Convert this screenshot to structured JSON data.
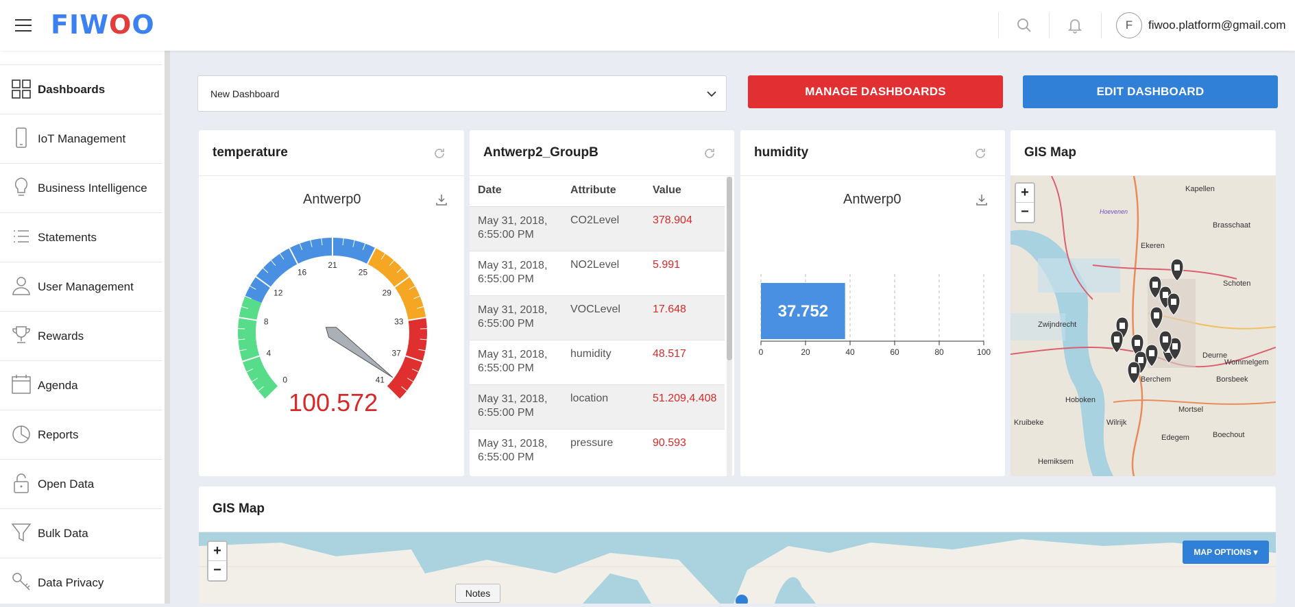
{
  "header": {
    "logo": "FIWOO",
    "avatar_letter": "F",
    "email": "fiwoo.platform@gmail.com"
  },
  "sidebar": {
    "items": [
      {
        "label": "Dashboards",
        "icon": "grid-icon",
        "active": true
      },
      {
        "label": "IoT Management",
        "icon": "phone-icon"
      },
      {
        "label": "Business Intelligence",
        "icon": "lightbulb-icon"
      },
      {
        "label": "Statements",
        "icon": "list-icon"
      },
      {
        "label": "User Management",
        "icon": "user-icon"
      },
      {
        "label": "Rewards",
        "icon": "trophy-icon"
      },
      {
        "label": "Agenda",
        "icon": "calendar-icon"
      },
      {
        "label": "Reports",
        "icon": "pie-chart-icon"
      },
      {
        "label": "Open Data",
        "icon": "unlock-icon"
      },
      {
        "label": "Bulk Data",
        "icon": "funnel-icon"
      },
      {
        "label": "Data Privacy",
        "icon": "key-icon"
      }
    ]
  },
  "toolbar": {
    "dashboard_select": "New Dashboard",
    "manage_label": "MANAGE DASHBOARDS",
    "edit_label": "EDIT DASHBOARD"
  },
  "widgets": {
    "temperature": {
      "title": "temperature",
      "subtitle": "Antwerp0",
      "value": "100.572",
      "ticks": [
        "0",
        "4",
        "8",
        "12",
        "16",
        "21",
        "25",
        "29",
        "33",
        "37",
        "41"
      ]
    },
    "table": {
      "title": "Antwerp2_GroupB",
      "headers": {
        "date": "Date",
        "attribute": "Attribute",
        "value": "Value"
      },
      "rows": [
        {
          "date": "May 31, 2018, 6:55:00 PM",
          "attribute": "CO2Level",
          "value": "378.904"
        },
        {
          "date": "May 31, 2018, 6:55:00 PM",
          "attribute": "NO2Level",
          "value": "5.991"
        },
        {
          "date": "May 31, 2018, 6:55:00 PM",
          "attribute": "VOCLevel",
          "value": "17.648"
        },
        {
          "date": "May 31, 2018, 6:55:00 PM",
          "attribute": "humidity",
          "value": "48.517"
        },
        {
          "date": "May 31, 2018, 6:55:00 PM",
          "attribute": "location",
          "value": "51.209,4.408"
        },
        {
          "date": "May 31, 2018, 6:55:00 PM",
          "attribute": "pressure",
          "value": "90.593"
        }
      ]
    },
    "humidity": {
      "title": "humidity",
      "subtitle": "Antwerp0",
      "value_label": "37.752"
    },
    "gis_small": {
      "title": "GIS Map",
      "places": [
        "Kapellen",
        "Hoevenen",
        "Brasschaat",
        "Ekeren",
        "Schoten",
        "Zwijndrecht",
        "Deurne",
        "Wommelgem",
        "Berchem",
        "Borsbeek",
        "Hoboken",
        "Mortsel",
        "Kruibeke",
        "Wilrijk",
        "Boechout",
        "Edegem",
        "Hemiksem"
      ]
    },
    "gis_large": {
      "title": "GIS Map",
      "map_options": "MAP OPTIONS ▾",
      "notes": "Notes"
    }
  },
  "chart_data": {
    "type": "bar",
    "categories": [
      ""
    ],
    "values": [
      37.752
    ],
    "xlim": [
      0,
      100
    ],
    "xticks": [
      "0",
      "20",
      "40",
      "60",
      "80",
      "100"
    ],
    "orientation": "horizontal"
  },
  "colors": {
    "accent_red": "#e12f32",
    "accent_blue": "#2f80d6",
    "gauge_green": "#57dd8a",
    "gauge_blue": "#4a90e2",
    "gauge_orange": "#f5a623",
    "gauge_red": "#e02f2f"
  }
}
